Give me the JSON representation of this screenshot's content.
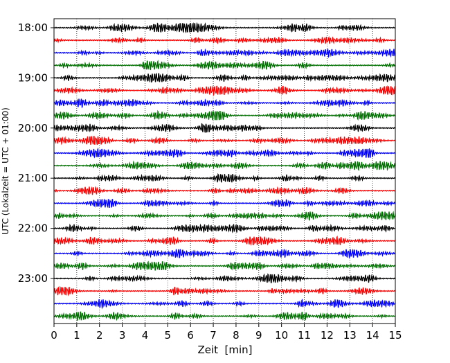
{
  "chart_data": {
    "type": "line",
    "title": "",
    "xlabel": "Zeit  [min]",
    "ylabel": "UTC (Lokalzeit = UTC + 01:00)",
    "xlim": [
      0,
      15
    ],
    "x_ticks": [
      0,
      1,
      2,
      3,
      4,
      5,
      6,
      7,
      8,
      9,
      10,
      11,
      12,
      13,
      14,
      15
    ],
    "y_tick_labels": [
      "18:00",
      "19:00",
      "20:00",
      "21:00",
      "22:00",
      "23:00"
    ],
    "grid": "vertical dotted lines at each minute",
    "trace_interval_min": 15,
    "trace_count": 24,
    "first_trace": "18:00",
    "series_colors": [
      "#000000",
      "#ff0000",
      "#0000ff",
      "#007000"
    ]
  }
}
